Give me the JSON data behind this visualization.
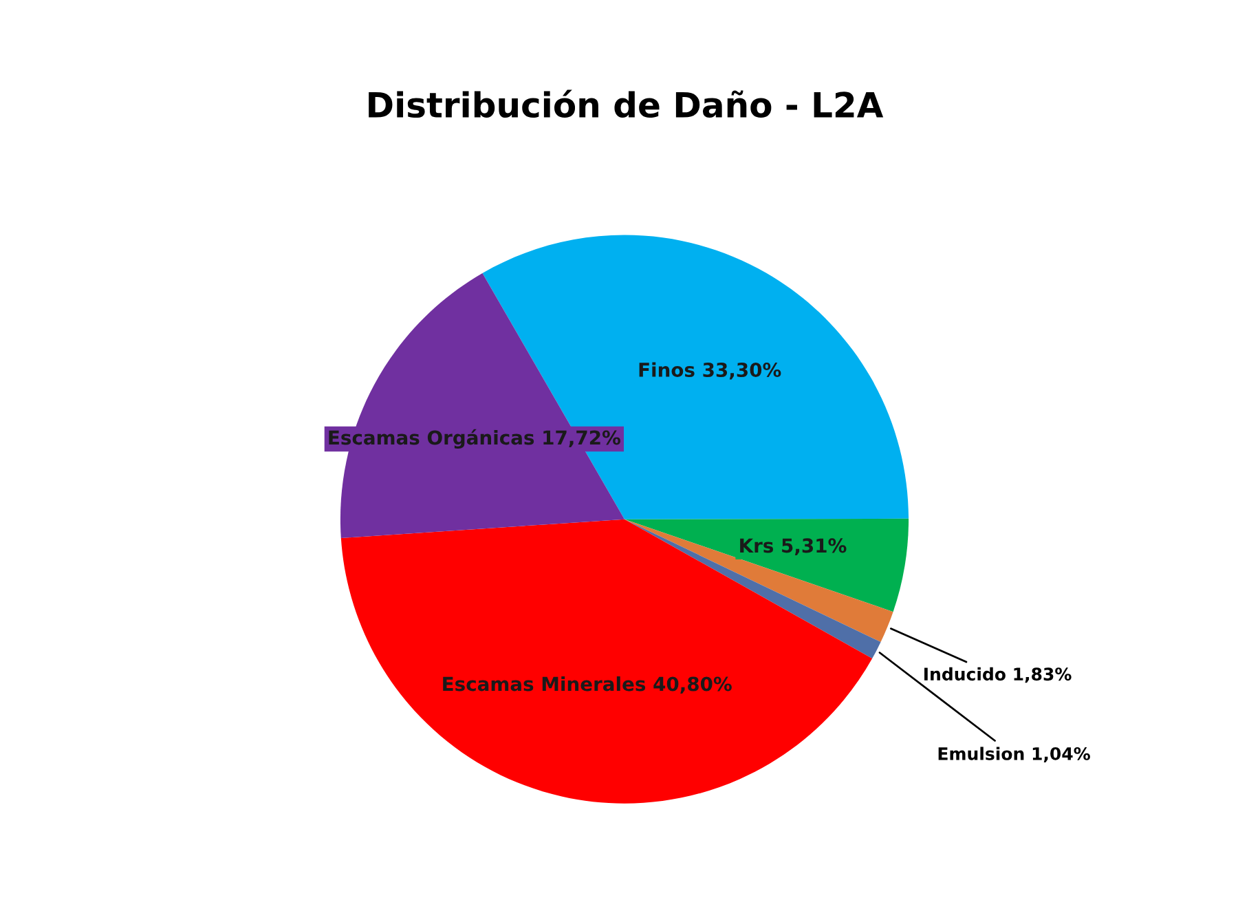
{
  "chart_data": {
    "type": "pie",
    "title": "Distribución de Daño - L2A",
    "categories": [
      "Finos",
      "Krs",
      "Inducido",
      "Emulsion",
      "Escamas Minerales",
      "Escamas Orgánicas"
    ],
    "values": [
      33.3,
      5.31,
      1.83,
      1.04,
      40.8,
      17.72
    ],
    "value_labels": [
      "33,30%",
      "5,31%",
      "1,83%",
      "1,04%",
      "40,80%",
      "17,72%"
    ],
    "colors": [
      "#00b0f0",
      "#00b050",
      "#e07b39",
      "#4f6fa8",
      "#ff0000",
      "#7030a0"
    ],
    "legend": false
  }
}
